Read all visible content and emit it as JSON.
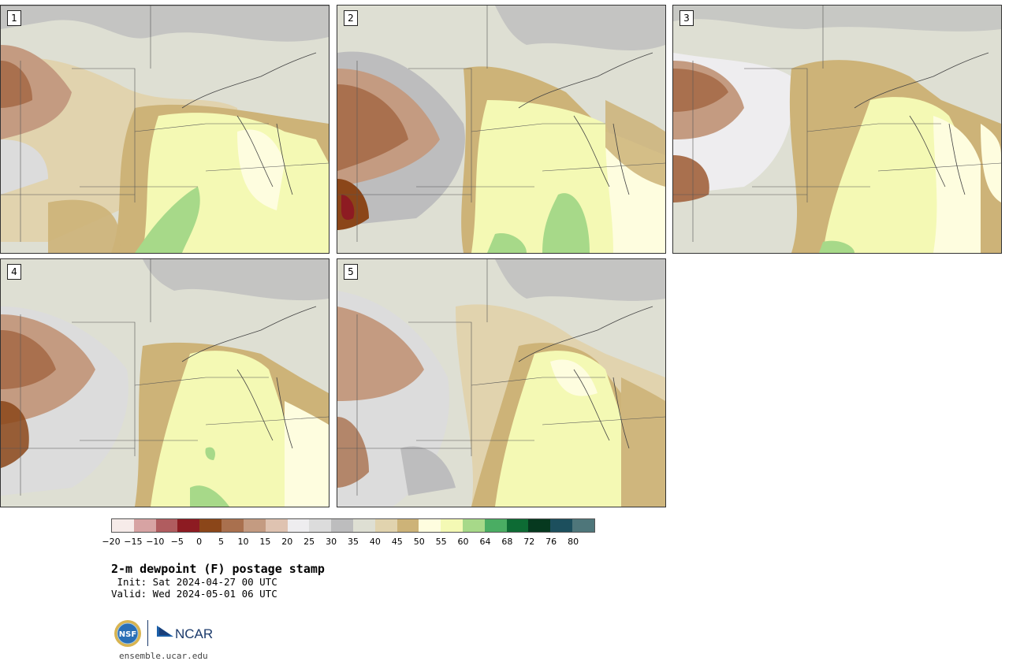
{
  "panels": [
    {
      "label": "1"
    },
    {
      "label": "2"
    },
    {
      "label": "3"
    },
    {
      "label": "4"
    },
    {
      "label": "5"
    }
  ],
  "legend": {
    "ticks": [
      "-20",
      "-15",
      "-10",
      "-5",
      "0",
      "5",
      "10",
      "15",
      "20",
      "25",
      "30",
      "35",
      "40",
      "45",
      "50",
      "55",
      "60",
      "64",
      "68",
      "72",
      "76",
      "80"
    ],
    "colors": [
      "#f6ebe9",
      "#d7a3a3",
      "#b05c5f",
      "#8d1b22",
      "#8b4619",
      "#a9704e",
      "#c49b81",
      "#dfc3b1",
      "#eeedef",
      "#dcdcdc",
      "#bdbdbe",
      "#dedfd3",
      "#e1d3ae",
      "#cdb378",
      "#fefddf",
      "#f4f9b4",
      "#a7d989",
      "#4aad63",
      "#0d6b34",
      "#06391f",
      "#1c4f5d",
      "#4e767a"
    ]
  },
  "title": "2-m dewpoint (F) postage stamp",
  "init": " Init: Sat 2024-04-27 00 UTC",
  "valid": "Valid: Wed 2024-05-01 06 UTC",
  "footer": {
    "url": "ensemble.ucar.edu",
    "nsf_logo_text": "NSF",
    "ncar_logo_text": "NCAR"
  }
}
